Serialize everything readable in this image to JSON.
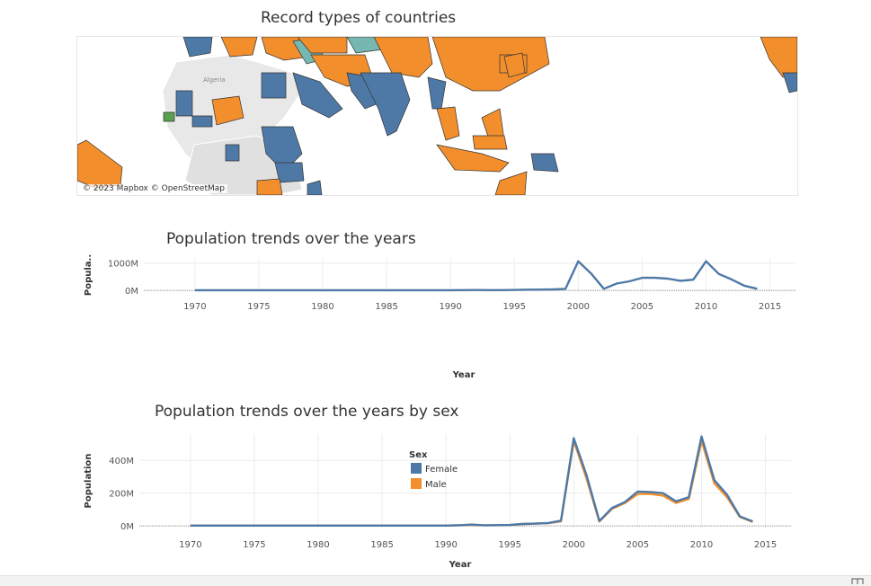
{
  "colors": {
    "blue": "#4e79a7",
    "orange": "#f28e2b",
    "teal": "#76b7b2",
    "green": "#59a14f",
    "land": "#e8e8e8",
    "land_dark": "#d9d9d9",
    "grid": "#ececec"
  },
  "map": {
    "title": "Record types of countries",
    "country_label": "Algeria",
    "attribution": "© 2023 Mapbox © OpenStreetMap"
  },
  "chart_data": [
    {
      "type": "line",
      "title": "Population trends over the years",
      "xlabel": "Year",
      "ylabel": "Popula..",
      "x_ticks": [
        1970,
        1975,
        1980,
        1985,
        1990,
        1995,
        2000,
        2005,
        2010,
        2015
      ],
      "y_ticks": [
        {
          "value": 0,
          "label": "0M"
        },
        {
          "value": 1000,
          "label": "1000M"
        }
      ],
      "xlim": [
        1966,
        2017
      ],
      "ylim": [
        -30,
        1150
      ],
      "series": [
        {
          "color": "#4e79a7",
          "points": [
            [
              1970,
              5
            ],
            [
              1975,
              5
            ],
            [
              1980,
              5
            ],
            [
              1985,
              5
            ],
            [
              1988,
              5
            ],
            [
              1990,
              5
            ],
            [
              1991,
              8
            ],
            [
              1992,
              12
            ],
            [
              1993,
              8
            ],
            [
              1994,
              10
            ],
            [
              1995,
              15
            ],
            [
              1996,
              25
            ],
            [
              1997,
              30
            ],
            [
              1998,
              35
            ],
            [
              1999,
              55
            ],
            [
              2000,
              1060
            ],
            [
              2001,
              620
            ],
            [
              2002,
              60
            ],
            [
              2003,
              250
            ],
            [
              2004,
              330
            ],
            [
              2005,
              460
            ],
            [
              2006,
              460
            ],
            [
              2007,
              430
            ],
            [
              2008,
              350
            ],
            [
              2009,
              390
            ],
            [
              2010,
              1060
            ],
            [
              2011,
              600
            ],
            [
              2012,
              400
            ],
            [
              2013,
              170
            ],
            [
              2014,
              60
            ]
          ]
        }
      ]
    },
    {
      "type": "line",
      "title": "Population trends over the years by sex",
      "xlabel": "Year",
      "ylabel": "Population",
      "x_ticks": [
        1970,
        1975,
        1980,
        1985,
        1990,
        1995,
        2000,
        2005,
        2010,
        2015
      ],
      "y_ticks": [
        {
          "value": 0,
          "label": "0M"
        },
        {
          "value": 200,
          "label": "200M"
        },
        {
          "value": 400,
          "label": "400M"
        }
      ],
      "xlim": [
        1966,
        2017
      ],
      "ylim": [
        -10,
        560
      ],
      "legend": {
        "title": "Sex",
        "position": "top-center"
      },
      "series": [
        {
          "name": "Male",
          "color": "#f28e2b",
          "points": [
            [
              1970,
              2
            ],
            [
              1975,
              2
            ],
            [
              1980,
              2
            ],
            [
              1985,
              2
            ],
            [
              1990,
              2
            ],
            [
              1991,
              4
            ],
            [
              1992,
              7
            ],
            [
              1993,
              4
            ],
            [
              1994,
              5
            ],
            [
              1995,
              6
            ],
            [
              1996,
              12
            ],
            [
              1997,
              14
            ],
            [
              1998,
              17
            ],
            [
              1999,
              28
            ],
            [
              2000,
              520
            ],
            [
              2001,
              290
            ],
            [
              2002,
              28
            ],
            [
              2003,
              105
            ],
            [
              2004,
              140
            ],
            [
              2005,
              195
            ],
            [
              2006,
              195
            ],
            [
              2007,
              185
            ],
            [
              2008,
              140
            ],
            [
              2009,
              165
            ],
            [
              2010,
              520
            ],
            [
              2011,
              260
            ],
            [
              2012,
              175
            ],
            [
              2013,
              55
            ],
            [
              2014,
              25
            ]
          ]
        },
        {
          "name": "Female",
          "color": "#4e79a7",
          "points": [
            [
              1970,
              2
            ],
            [
              1975,
              2
            ],
            [
              1980,
              2
            ],
            [
              1985,
              2
            ],
            [
              1990,
              2
            ],
            [
              1991,
              4
            ],
            [
              1992,
              8
            ],
            [
              1993,
              4
            ],
            [
              1994,
              5
            ],
            [
              1995,
              6
            ],
            [
              1996,
              12
            ],
            [
              1997,
              14
            ],
            [
              1998,
              18
            ],
            [
              1999,
              32
            ],
            [
              2000,
              535
            ],
            [
              2001,
              310
            ],
            [
              2002,
              30
            ],
            [
              2003,
              110
            ],
            [
              2004,
              145
            ],
            [
              2005,
              210
            ],
            [
              2006,
              207
            ],
            [
              2007,
              200
            ],
            [
              2008,
              150
            ],
            [
              2009,
              175
            ],
            [
              2010,
              545
            ],
            [
              2011,
              280
            ],
            [
              2012,
              190
            ],
            [
              2013,
              58
            ],
            [
              2014,
              28
            ]
          ]
        }
      ]
    }
  ]
}
